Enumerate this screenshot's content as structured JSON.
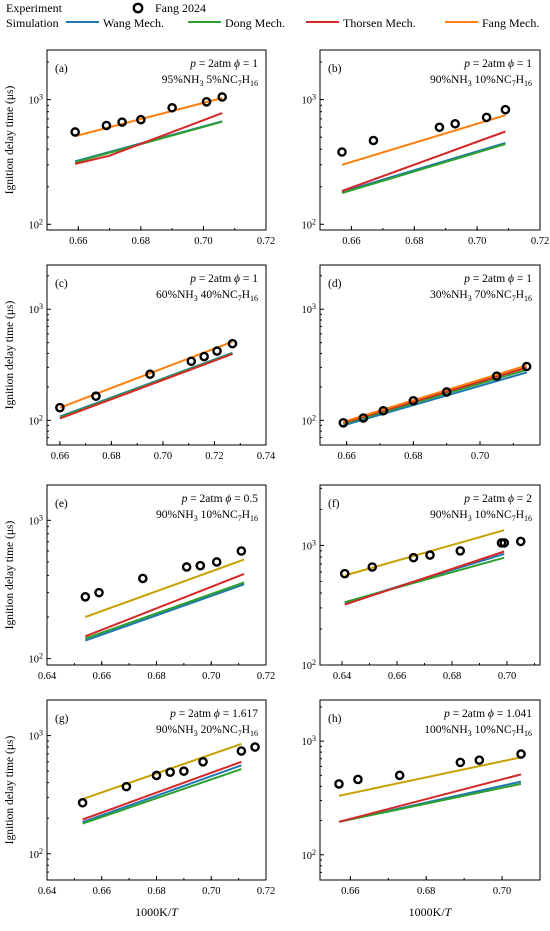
{
  "legend": {
    "experiment_label": "Experiment",
    "simulation_label": "Simulation",
    "experiment_name": "Fang 2024",
    "series": [
      {
        "name": "Wang Mech.",
        "color": "#1f77b4"
      },
      {
        "name": "Dong Mech.",
        "color": "#2ca02c"
      },
      {
        "name": "Thorsen Mech.",
        "color": "#d62728"
      },
      {
        "name": "Fang Mech.",
        "color": "#ff7f0e"
      }
    ]
  },
  "y_label": "Ignition delay time (μs)",
  "x_label_prefix": "1000K/",
  "x_label_var": "T",
  "chart_data": [
    {
      "panel": "(a)",
      "type": "line",
      "col": 0,
      "row": 0,
      "cond_p": "2atm",
      "cond_phi": "1",
      "mix": [
        [
          "95%NH",
          "3"
        ],
        [
          "5%NC",
          "7"
        ],
        [
          "H",
          "16"
        ]
      ],
      "xlim": [
        0.65,
        0.72
      ],
      "xticks": [
        0.66,
        0.68,
        0.7,
        0.72
      ],
      "ylim": [
        90,
        2500
      ],
      "yticks": [
        100,
        1000
      ],
      "show_ylabel": true,
      "show_xlabel": false,
      "experiment": {
        "x": [
          0.659,
          0.669,
          0.674,
          0.68,
          0.69,
          0.701,
          0.706
        ],
        "y": [
          550,
          620,
          660,
          690,
          860,
          960,
          1050
        ]
      },
      "series": [
        {
          "name": "Wang Mech.",
          "x": [
            0.659,
            0.706
          ],
          "y": [
            320,
            670
          ]
        },
        {
          "name": "Dong Mech.",
          "x": [
            0.659,
            0.706
          ],
          "y": [
            315,
            665
          ]
        },
        {
          "name": "Thorsen Mech.",
          "x": [
            0.659,
            0.67,
            0.706
          ],
          "y": [
            305,
            355,
            780
          ]
        },
        {
          "name": "Fang Mech.",
          "x": [
            0.659,
            0.706
          ],
          "y": [
            510,
            1030
          ]
        }
      ]
    },
    {
      "panel": "(b)",
      "type": "line",
      "col": 1,
      "row": 0,
      "cond_p": "2atm",
      "cond_phi": "1",
      "mix": [
        [
          "90%NH",
          "3"
        ],
        [
          "10%NC",
          "7"
        ],
        [
          "H",
          "16"
        ]
      ],
      "xlim": [
        0.65,
        0.72
      ],
      "xticks": [
        0.66,
        0.68,
        0.7,
        0.72
      ],
      "ylim": [
        90,
        2500
      ],
      "yticks": [
        100,
        1000
      ],
      "show_ylabel": false,
      "show_xlabel": false,
      "experiment": {
        "x": [
          0.657,
          0.667,
          0.688,
          0.693,
          0.703,
          0.709
        ],
        "y": [
          380,
          470,
          600,
          640,
          720,
          830
        ]
      },
      "series": [
        {
          "name": "Wang Mech.",
          "x": [
            0.657,
            0.709
          ],
          "y": [
            182,
            450
          ]
        },
        {
          "name": "Dong Mech.",
          "x": [
            0.657,
            0.709
          ],
          "y": [
            178,
            440
          ]
        },
        {
          "name": "Thorsen Mech.",
          "x": [
            0.657,
            0.709
          ],
          "y": [
            185,
            555
          ]
        },
        {
          "name": "Fang Mech.",
          "x": [
            0.657,
            0.709
          ],
          "y": [
            300,
            750
          ]
        }
      ]
    },
    {
      "panel": "(c)",
      "type": "line",
      "col": 0,
      "row": 1,
      "cond_p": "2atm",
      "cond_phi": "1",
      "mix": [
        [
          "60%NH",
          "3"
        ],
        [
          "40%NC",
          "7"
        ],
        [
          "H",
          "16"
        ]
      ],
      "xlim": [
        0.655,
        0.74
      ],
      "xticks": [
        0.66,
        0.68,
        0.7,
        0.72,
        0.74
      ],
      "ylim": [
        60,
        2500
      ],
      "yticks": [
        100,
        1000
      ],
      "show_ylabel": true,
      "show_xlabel": false,
      "experiment": {
        "x": [
          0.66,
          0.674,
          0.695,
          0.711,
          0.716,
          0.721,
          0.727
        ],
        "y": [
          130,
          165,
          260,
          340,
          375,
          420,
          490
        ]
      },
      "series": [
        {
          "name": "Wang Mech.",
          "x": [
            0.66,
            0.727
          ],
          "y": [
            108,
            405
          ]
        },
        {
          "name": "Dong Mech.",
          "x": [
            0.66,
            0.727
          ],
          "y": [
            106,
            400
          ]
        },
        {
          "name": "Thorsen Mech.",
          "x": [
            0.66,
            0.727
          ],
          "y": [
            104,
            395
          ]
        },
        {
          "name": "Fang Mech.",
          "x": [
            0.66,
            0.727
          ],
          "y": [
            130,
            510
          ]
        }
      ]
    },
    {
      "panel": "(d)",
      "type": "line",
      "col": 1,
      "row": 1,
      "cond_p": "2atm",
      "cond_phi": "1",
      "mix": [
        [
          "30%NH",
          "3"
        ],
        [
          "70%NC",
          "7"
        ],
        [
          "H",
          "16"
        ]
      ],
      "xlim": [
        0.652,
        0.718
      ],
      "xticks": [
        0.66,
        0.68,
        0.7
      ],
      "ylim": [
        60,
        2500
      ],
      "yticks": [
        100,
        1000
      ],
      "show_ylabel": false,
      "show_xlabel": false,
      "experiment": {
        "x": [
          0.659,
          0.665,
          0.671,
          0.68,
          0.69,
          0.705,
          0.714
        ],
        "y": [
          95,
          105,
          122,
          150,
          180,
          250,
          305
        ]
      },
      "series": [
        {
          "name": "Wang Mech.",
          "x": [
            0.659,
            0.714
          ],
          "y": [
            90,
            270
          ]
        },
        {
          "name": "Dong Mech.",
          "x": [
            0.659,
            0.714
          ],
          "y": [
            93,
            285
          ]
        },
        {
          "name": "Thorsen Mech.",
          "x": [
            0.659,
            0.714
          ],
          "y": [
            95,
            298
          ]
        },
        {
          "name": "Fang Mech.",
          "x": [
            0.659,
            0.714
          ],
          "y": [
            97,
            312
          ]
        }
      ]
    },
    {
      "panel": "(e)",
      "type": "line",
      "col": 0,
      "row": 2,
      "cond_p": "2atm",
      "cond_phi": "0.5",
      "mix": [
        [
          "90%NH",
          "3"
        ],
        [
          "10%NC",
          "7"
        ],
        [
          "H",
          "16"
        ]
      ],
      "xlim": [
        0.64,
        0.72
      ],
      "xticks": [
        0.64,
        0.66,
        0.68,
        0.7,
        0.72
      ],
      "ylim": [
        90,
        1800
      ],
      "yticks": [
        100,
        1000
      ],
      "show_ylabel": true,
      "show_xlabel": false,
      "experiment": {
        "x": [
          0.654,
          0.659,
          0.675,
          0.691,
          0.696,
          0.702,
          0.711
        ],
        "y": [
          280,
          300,
          380,
          460,
          470,
          500,
          600
        ]
      },
      "series": [
        {
          "name": "Wang Mech.",
          "x": [
            0.654,
            0.712
          ],
          "y": [
            135,
            345
          ]
        },
        {
          "name": "Dong Mech.",
          "x": [
            0.654,
            0.712
          ],
          "y": [
            140,
            355
          ]
        },
        {
          "name": "Thorsen Mech.",
          "x": [
            0.654,
            0.712
          ],
          "y": [
            145,
            410
          ]
        },
        {
          "name": "Fang Mech.",
          "x": [
            0.654,
            0.712
          ],
          "y": [
            200,
            520
          ]
        }
      ]
    },
    {
      "panel": "(f)",
      "type": "line",
      "col": 1,
      "row": 2,
      "cond_p": "2atm",
      "cond_phi": "2",
      "mix": [
        [
          "90%NH",
          "3"
        ],
        [
          "10%NC",
          "7"
        ],
        [
          "H",
          "16"
        ]
      ],
      "xlim": [
        0.632,
        0.712
      ],
      "xticks": [
        0.64,
        0.66,
        0.68,
        0.7
      ],
      "ylim": [
        100,
        3200
      ],
      "yticks": [
        100,
        1000
      ],
      "show_ylabel": false,
      "show_xlabel": false,
      "experiment": {
        "x": [
          0.641,
          0.651,
          0.666,
          0.672,
          0.683,
          0.698,
          0.699,
          0.705
        ],
        "y": [
          580,
          660,
          790,
          830,
          900,
          1050,
          1050,
          1080
        ]
      },
      "series": [
        {
          "name": "Wang Mech.",
          "x": [
            0.641,
            0.699
          ],
          "y": [
            330,
            850
          ]
        },
        {
          "name": "Dong Mech.",
          "x": [
            0.641,
            0.699
          ],
          "y": [
            335,
            790
          ]
        },
        {
          "name": "Thorsen Mech.",
          "x": [
            0.641,
            0.699
          ],
          "y": [
            320,
            890
          ]
        },
        {
          "name": "Fang Mech.",
          "x": [
            0.641,
            0.699
          ],
          "y": [
            560,
            1340
          ]
        }
      ]
    },
    {
      "panel": "(g)",
      "type": "line",
      "col": 0,
      "row": 3,
      "cond_p": "2atm",
      "cond_phi": "1.617",
      "mix": [
        [
          "90%NH",
          "3"
        ],
        [
          "20%NC",
          "7"
        ],
        [
          "H",
          "16"
        ]
      ],
      "xlim": [
        0.64,
        0.72
      ],
      "xticks": [
        0.64,
        0.66,
        0.68,
        0.7,
        0.72
      ],
      "ylim": [
        60,
        2000
      ],
      "yticks": [
        100,
        1000
      ],
      "show_ylabel": true,
      "show_xlabel": true,
      "experiment": {
        "x": [
          0.653,
          0.669,
          0.68,
          0.685,
          0.69,
          0.697,
          0.711,
          0.716
        ],
        "y": [
          270,
          370,
          460,
          490,
          500,
          600,
          740,
          800
        ]
      },
      "series": [
        {
          "name": "Wang Mech.",
          "x": [
            0.653,
            0.711
          ],
          "y": [
            185,
            560
          ]
        },
        {
          "name": "Dong Mech.",
          "x": [
            0.653,
            0.711
          ],
          "y": [
            180,
            520
          ]
        },
        {
          "name": "Thorsen Mech.",
          "x": [
            0.653,
            0.711
          ],
          "y": [
            195,
            600
          ]
        },
        {
          "name": "Fang Mech.",
          "x": [
            0.653,
            0.711
          ],
          "y": [
            290,
            850
          ]
        }
      ]
    },
    {
      "panel": "(h)",
      "type": "line",
      "col": 1,
      "row": 3,
      "cond_p": "2atm",
      "cond_phi": "1.041",
      "mix": [
        [
          "100%NH",
          "3"
        ],
        [
          "10%NC",
          "7"
        ],
        [
          "H",
          "16"
        ]
      ],
      "xlim": [
        0.652,
        0.71
      ],
      "xticks": [
        0.66,
        0.68,
        0.7
      ],
      "ylim": [
        60,
        2300
      ],
      "yticks": [
        100,
        1000
      ],
      "show_ylabel": false,
      "show_xlabel": true,
      "experiment": {
        "x": [
          0.657,
          0.662,
          0.673,
          0.689,
          0.694,
          0.705
        ],
        "y": [
          420,
          460,
          500,
          650,
          680,
          770
        ]
      },
      "series": [
        {
          "name": "Wang Mech.",
          "x": [
            0.657,
            0.705
          ],
          "y": [
            195,
            440
          ]
        },
        {
          "name": "Dong Mech.",
          "x": [
            0.657,
            0.705
          ],
          "y": [
            195,
            420
          ]
        },
        {
          "name": "Thorsen Mech.",
          "x": [
            0.657,
            0.705
          ],
          "y": [
            195,
            510
          ]
        },
        {
          "name": "Fang Mech.",
          "x": [
            0.657,
            0.705
          ],
          "y": [
            330,
            720
          ]
        }
      ]
    }
  ]
}
